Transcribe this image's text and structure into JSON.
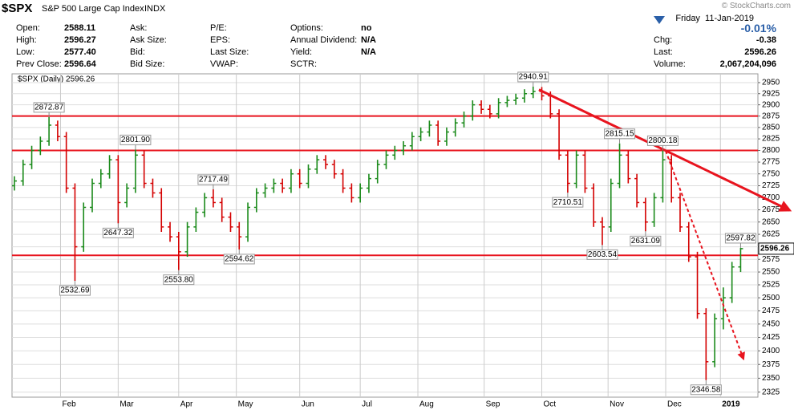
{
  "quote": {
    "symbol": "$SPX",
    "name": "S&P 500 Large Cap Index",
    "exchange": "INDX",
    "date": "Friday  11-Jan-2019",
    "watermark": "© StockCharts.com",
    "col1": [
      {
        "label": "Open:",
        "value": "2588.11"
      },
      {
        "label": "High:",
        "value": "2596.27"
      },
      {
        "label": "Low:",
        "value": "2577.40"
      },
      {
        "label": "Prev Close:",
        "value": "2596.64"
      }
    ],
    "col2": [
      {
        "label": "Ask:"
      },
      {
        "label": "Ask Size:"
      },
      {
        "label": "Bid:"
      },
      {
        "label": "Bid Size:"
      }
    ],
    "col3": [
      {
        "label": "P/E:"
      },
      {
        "label": "EPS:"
      },
      {
        "label": "Last Size:"
      },
      {
        "label": "VWAP:"
      }
    ],
    "col4": [
      {
        "label": "Options:",
        "value": "no"
      },
      {
        "label": "Annual Dividend:",
        "value": "N/A"
      },
      {
        "label": "Yield:",
        "value": "N/A"
      },
      {
        "label": "SCTR:"
      }
    ],
    "right": [
      {
        "value": "-0.01%"
      },
      {
        "label": "Chg:",
        "value": "-0.38"
      },
      {
        "label": "Last:",
        "value": "2596.26"
      },
      {
        "label": "Volume:",
        "value": "2,067,204,096"
      }
    ]
  },
  "chart_data": {
    "type": "ohlc",
    "title": "$SPX (Daily) 2596.26",
    "last_price": 2596.26,
    "log_scale": true,
    "grid": true,
    "up_color": "#1a8a1a",
    "down_color": "#d40000",
    "line_color": "#e8141e",
    "xlim": [
      0,
      258
    ],
    "ylim": [
      2316,
      2970
    ],
    "yticks": [
      2325,
      2350,
      2375,
      2400,
      2425,
      2450,
      2475,
      2500,
      2525,
      2550,
      2575,
      2600,
      2625,
      2650,
      2675,
      2700,
      2725,
      2750,
      2775,
      2800,
      2825,
      2850,
      2875,
      2900,
      2925,
      2950
    ],
    "xticks": [
      {
        "value": 16,
        "label": "Feb"
      },
      {
        "value": 36,
        "label": "Mar"
      },
      {
        "value": 57,
        "label": "Apr"
      },
      {
        "value": 77,
        "label": "May"
      },
      {
        "value": 99,
        "label": "Jun"
      },
      {
        "value": 120,
        "label": "Jul"
      },
      {
        "value": 140,
        "label": "Aug"
      },
      {
        "value": 163,
        "label": "Sep"
      },
      {
        "value": 183,
        "label": "Oct"
      },
      {
        "value": 206,
        "label": "Nov"
      },
      {
        "value": 226,
        "label": "Dec"
      },
      {
        "value": 245,
        "label": "2019"
      }
    ],
    "x": [
      0,
      3,
      6,
      9,
      12,
      15,
      18,
      21,
      24,
      27,
      30,
      33,
      36,
      39,
      42,
      45,
      48,
      51,
      54,
      57,
      60,
      63,
      66,
      69,
      72,
      75,
      78,
      81,
      84,
      87,
      90,
      93,
      96,
      99,
      102,
      105,
      108,
      111,
      114,
      117,
      120,
      123,
      126,
      129,
      132,
      135,
      138,
      141,
      144,
      147,
      150,
      153,
      156,
      159,
      162,
      165,
      168,
      171,
      174,
      177,
      180,
      183,
      186,
      189,
      192,
      195,
      198,
      201,
      204,
      207,
      210,
      213,
      216,
      219,
      222,
      225,
      228,
      231,
      234,
      237,
      240,
      243,
      246,
      249,
      252
    ],
    "ohlc": [
      [
        2725,
        2745,
        2715,
        2735
      ],
      [
        2735,
        2780,
        2725,
        2770
      ],
      [
        2770,
        2810,
        2760,
        2800
      ],
      [
        2800,
        2830,
        2790,
        2820
      ],
      [
        2820,
        2872.87,
        2810,
        2855
      ],
      [
        2855,
        2865,
        2820,
        2830
      ],
      [
        2830,
        2840,
        2710,
        2720
      ],
      [
        2720,
        2730,
        2532.69,
        2600
      ],
      [
        2600,
        2690,
        2590,
        2680
      ],
      [
        2680,
        2740,
        2670,
        2730
      ],
      [
        2730,
        2760,
        2720,
        2750
      ],
      [
        2750,
        2790,
        2740,
        2780
      ],
      [
        2780,
        2790,
        2647.32,
        2690
      ],
      [
        2690,
        2730,
        2680,
        2720
      ],
      [
        2720,
        2801.9,
        2710,
        2790
      ],
      [
        2790,
        2800,
        2720,
        2730
      ],
      [
        2730,
        2740,
        2700,
        2710
      ],
      [
        2710,
        2720,
        2630,
        2640
      ],
      [
        2640,
        2650,
        2610,
        2620
      ],
      [
        2620,
        2630,
        2553.8,
        2590
      ],
      [
        2590,
        2650,
        2580,
        2640
      ],
      [
        2640,
        2680,
        2630,
        2670
      ],
      [
        2670,
        2710,
        2660,
        2700
      ],
      [
        2700,
        2717.49,
        2680,
        2690
      ],
      [
        2690,
        2700,
        2650,
        2660
      ],
      [
        2660,
        2670,
        2630,
        2640
      ],
      [
        2640,
        2650,
        2594.62,
        2620
      ],
      [
        2620,
        2690,
        2610,
        2680
      ],
      [
        2680,
        2720,
        2670,
        2710
      ],
      [
        2710,
        2730,
        2700,
        2720
      ],
      [
        2720,
        2740,
        2710,
        2730
      ],
      [
        2730,
        2740,
        2710,
        2720
      ],
      [
        2720,
        2760,
        2710,
        2750
      ],
      [
        2750,
        2760,
        2720,
        2730
      ],
      [
        2730,
        2770,
        2720,
        2760
      ],
      [
        2760,
        2790,
        2750,
        2780
      ],
      [
        2780,
        2790,
        2760,
        2770
      ],
      [
        2770,
        2780,
        2740,
        2750
      ],
      [
        2750,
        2760,
        2710,
        2720
      ],
      [
        2720,
        2730,
        2690,
        2700
      ],
      [
        2700,
        2730,
        2690,
        2720
      ],
      [
        2720,
        2750,
        2710,
        2740
      ],
      [
        2740,
        2780,
        2730,
        2770
      ],
      [
        2770,
        2800,
        2760,
        2790
      ],
      [
        2790,
        2810,
        2780,
        2800
      ],
      [
        2800,
        2820,
        2790,
        2810
      ],
      [
        2810,
        2840,
        2800,
        2830
      ],
      [
        2830,
        2850,
        2820,
        2840
      ],
      [
        2840,
        2865,
        2830,
        2855
      ],
      [
        2855,
        2865,
        2810,
        2820
      ],
      [
        2820,
        2850,
        2810,
        2840
      ],
      [
        2840,
        2870,
        2830,
        2860
      ],
      [
        2860,
        2885,
        2850,
        2875
      ],
      [
        2875,
        2910,
        2865,
        2900
      ],
      [
        2900,
        2910,
        2880,
        2890
      ],
      [
        2890,
        2900,
        2870,
        2880
      ],
      [
        2880,
        2915,
        2870,
        2905
      ],
      [
        2905,
        2920,
        2895,
        2910
      ],
      [
        2910,
        2925,
        2900,
        2915
      ],
      [
        2915,
        2935,
        2905,
        2925
      ],
      [
        2925,
        2940.91,
        2915,
        2930
      ],
      [
        2930,
        2940,
        2910,
        2920
      ],
      [
        2920,
        2930,
        2870,
        2880
      ],
      [
        2880,
        2890,
        2780,
        2790
      ],
      [
        2790,
        2800,
        2710.51,
        2730
      ],
      [
        2730,
        2800,
        2720,
        2790
      ],
      [
        2790,
        2800,
        2710,
        2720
      ],
      [
        2720,
        2730,
        2640,
        2650
      ],
      [
        2650,
        2660,
        2603.54,
        2640
      ],
      [
        2640,
        2740,
        2630,
        2730
      ],
      [
        2730,
        2815.15,
        2720,
        2790
      ],
      [
        2790,
        2800,
        2730,
        2740
      ],
      [
        2740,
        2750,
        2680,
        2690
      ],
      [
        2690,
        2700,
        2631.09,
        2650
      ],
      [
        2650,
        2710,
        2640,
        2700
      ],
      [
        2700,
        2800.18,
        2690,
        2780
      ],
      [
        2780,
        2790,
        2690,
        2700
      ],
      [
        2700,
        2710,
        2630,
        2640
      ],
      [
        2640,
        2650,
        2570,
        2580
      ],
      [
        2580,
        2590,
        2460,
        2470
      ],
      [
        2470,
        2480,
        2346.58,
        2380
      ],
      [
        2380,
        2470,
        2370,
        2460
      ],
      [
        2460,
        2520,
        2440,
        2500
      ],
      [
        2500,
        2570,
        2490,
        2560
      ],
      [
        2560,
        2597.82,
        2550,
        2596.26
      ]
    ],
    "hlines": [
      2875,
      2800,
      2583
    ],
    "trendlines": [
      {
        "x": [
          182,
          269
        ],
        "y": [
          2934,
          2674
        ],
        "dashed": false
      },
      {
        "x": [
          226,
          253
        ],
        "y": [
          2799,
          2385
        ],
        "dashed": true
      }
    ],
    "annotations": [
      {
        "x": 12,
        "y": 2872.87,
        "label": "2872.87",
        "pos": "above"
      },
      {
        "x": 21,
        "y": 2532.69,
        "label": "2532.69",
        "pos": "below"
      },
      {
        "x": 36,
        "y": 2647.32,
        "label": "2647.32",
        "pos": "below"
      },
      {
        "x": 42,
        "y": 2801.9,
        "label": "2801.90",
        "pos": "above"
      },
      {
        "x": 57,
        "y": 2553.8,
        "label": "2553.80",
        "pos": "below"
      },
      {
        "x": 69,
        "y": 2717.49,
        "label": "2717.49",
        "pos": "above"
      },
      {
        "x": 78,
        "y": 2594.62,
        "label": "2594.62",
        "pos": "below"
      },
      {
        "x": 180,
        "y": 2940.91,
        "label": "2940.91",
        "pos": "above"
      },
      {
        "x": 192,
        "y": 2710.51,
        "label": "2710.51",
        "pos": "below"
      },
      {
        "x": 204,
        "y": 2603.54,
        "label": "2603.54",
        "pos": "below"
      },
      {
        "x": 210,
        "y": 2815.15,
        "label": "2815.15",
        "pos": "above"
      },
      {
        "x": 219,
        "y": 2631.09,
        "label": "2631.09",
        "pos": "below"
      },
      {
        "x": 225,
        "y": 2800.18,
        "label": "2800.18",
        "pos": "above"
      },
      {
        "x": 240,
        "y": 2346.58,
        "label": "2346.58",
        "pos": "below"
      },
      {
        "x": 252,
        "y": 2597.82,
        "label": "2597.82",
        "pos": "above"
      }
    ]
  }
}
